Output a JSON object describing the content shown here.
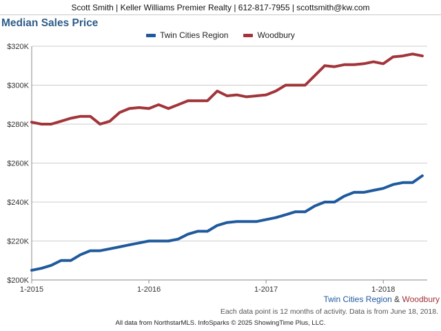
{
  "header": {
    "contact": "Scott Smith | Keller Williams Premier Realty | 612-817-7955 | scottsmith@kw.com"
  },
  "colors": {
    "twin": "#1f5a9d",
    "wood": "#a2353a",
    "grid": "#cccccc",
    "axis": "#888888"
  },
  "series_footer": {
    "twin": "Twin Cities Region",
    "amp": "&",
    "wood": "Woodbury"
  },
  "note": "Each data point is 12 months of activity. Data is from June 18, 2018.",
  "footer": "All data from NorthstarMLS. InfoSparks © 2025 ShowingTime Plus, LLC.",
  "chart_data": {
    "type": "line",
    "title": "Median Sales Price",
    "xlabel": "",
    "ylabel": "",
    "ylim": [
      200000,
      320000
    ],
    "yticks": [
      200000,
      220000,
      240000,
      260000,
      280000,
      300000,
      320000
    ],
    "ytick_labels": [
      "$200K",
      "$220K",
      "$240K",
      "$260K",
      "$280K",
      "$300K",
      "$320K"
    ],
    "xlim": [
      0,
      40.5
    ],
    "xticks": [
      0,
      12,
      24,
      36
    ],
    "xtick_labels": [
      "1-2015",
      "1-2016",
      "1-2017",
      "1-2018"
    ],
    "legend_position": "top-center",
    "x": [
      0,
      1,
      2,
      3,
      4,
      5,
      6,
      7,
      8,
      9,
      10,
      11,
      12,
      13,
      14,
      15,
      16,
      17,
      18,
      19,
      20,
      21,
      22,
      23,
      24,
      25,
      26,
      27,
      28,
      29,
      30,
      31,
      32,
      33,
      34,
      35,
      36,
      37,
      38,
      39,
      40
    ],
    "series": [
      {
        "name": "Twin Cities Region",
        "color": "#1f5a9d",
        "values": [
          205000,
          206000,
          207500,
          210000,
          210000,
          213000,
          215000,
          215000,
          216000,
          217000,
          218000,
          219000,
          220000,
          220000,
          220000,
          221000,
          223500,
          225000,
          225000,
          228000,
          229500,
          230000,
          230000,
          230000,
          231000,
          232000,
          233500,
          235000,
          235000,
          238000,
          240000,
          240000,
          243000,
          245000,
          245000,
          246000,
          247000,
          249000,
          250000,
          250000,
          253500
        ]
      },
      {
        "name": "Woodbury",
        "color": "#a2353a",
        "values": [
          281000,
          280000,
          280000,
          281500,
          283000,
          284000,
          284000,
          280000,
          281500,
          286000,
          288000,
          288500,
          288000,
          290000,
          288000,
          290000,
          292000,
          292000,
          292000,
          297000,
          294500,
          295000,
          294000,
          294500,
          295000,
          297000,
          300000,
          300000,
          300000,
          305000,
          310000,
          309500,
          310500,
          310500,
          311000,
          312000,
          311000,
          314500,
          315000,
          316000,
          315000
        ]
      }
    ]
  }
}
